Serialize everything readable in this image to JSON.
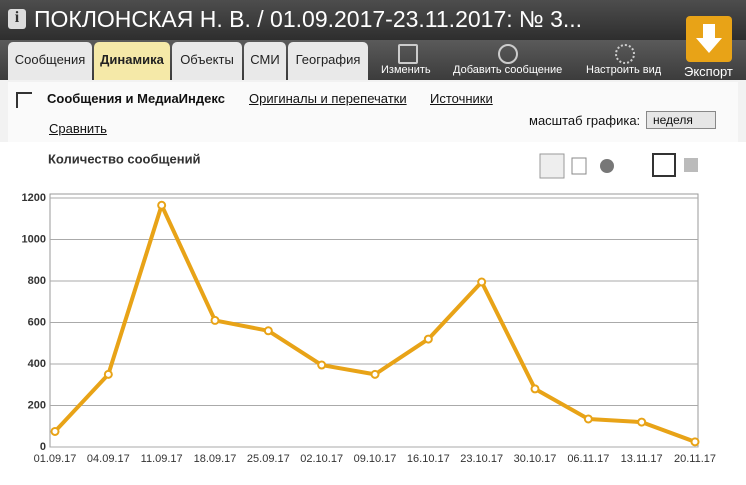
{
  "header": {
    "title": "ПОКЛОНСКАЯ Н. В. / 01.09.2017-23.11.2017: № 3..."
  },
  "tabs": [
    "Сообщения",
    "Динамика",
    "Объекты",
    "СМИ",
    "География"
  ],
  "toolbar": [
    "Изменить",
    "Добавить сообщение",
    "Настроить вид"
  ],
  "export": "Экспорт",
  "subnav": [
    "Сообщения и МедиаИндекс",
    "Оригиналы и перепечатки",
    "Источники"
  ],
  "compare": "Сравнить",
  "scale": {
    "label": "масштаб графика:",
    "value": "неделя"
  },
  "chart_data": {
    "type": "line",
    "title": "Количество сообщений",
    "categories": [
      "01.09.17",
      "04.09.17",
      "11.09.17",
      "18.09.17",
      "25.09.17",
      "02.10.17",
      "09.10.17",
      "16.10.17",
      "23.10.17",
      "30.10.17",
      "06.11.17",
      "13.11.17",
      "20.11.17"
    ],
    "series": [
      {
        "color": "#e8a317",
        "values": [
          75,
          350,
          1165,
          610,
          560,
          395,
          350,
          520,
          795,
          280,
          135,
          120,
          25
        ]
      }
    ],
    "ylim": [
      0,
      1200
    ],
    "yticks": [
      0,
      200,
      400,
      600,
      800,
      1000,
      1200
    ],
    "grid": true
  }
}
